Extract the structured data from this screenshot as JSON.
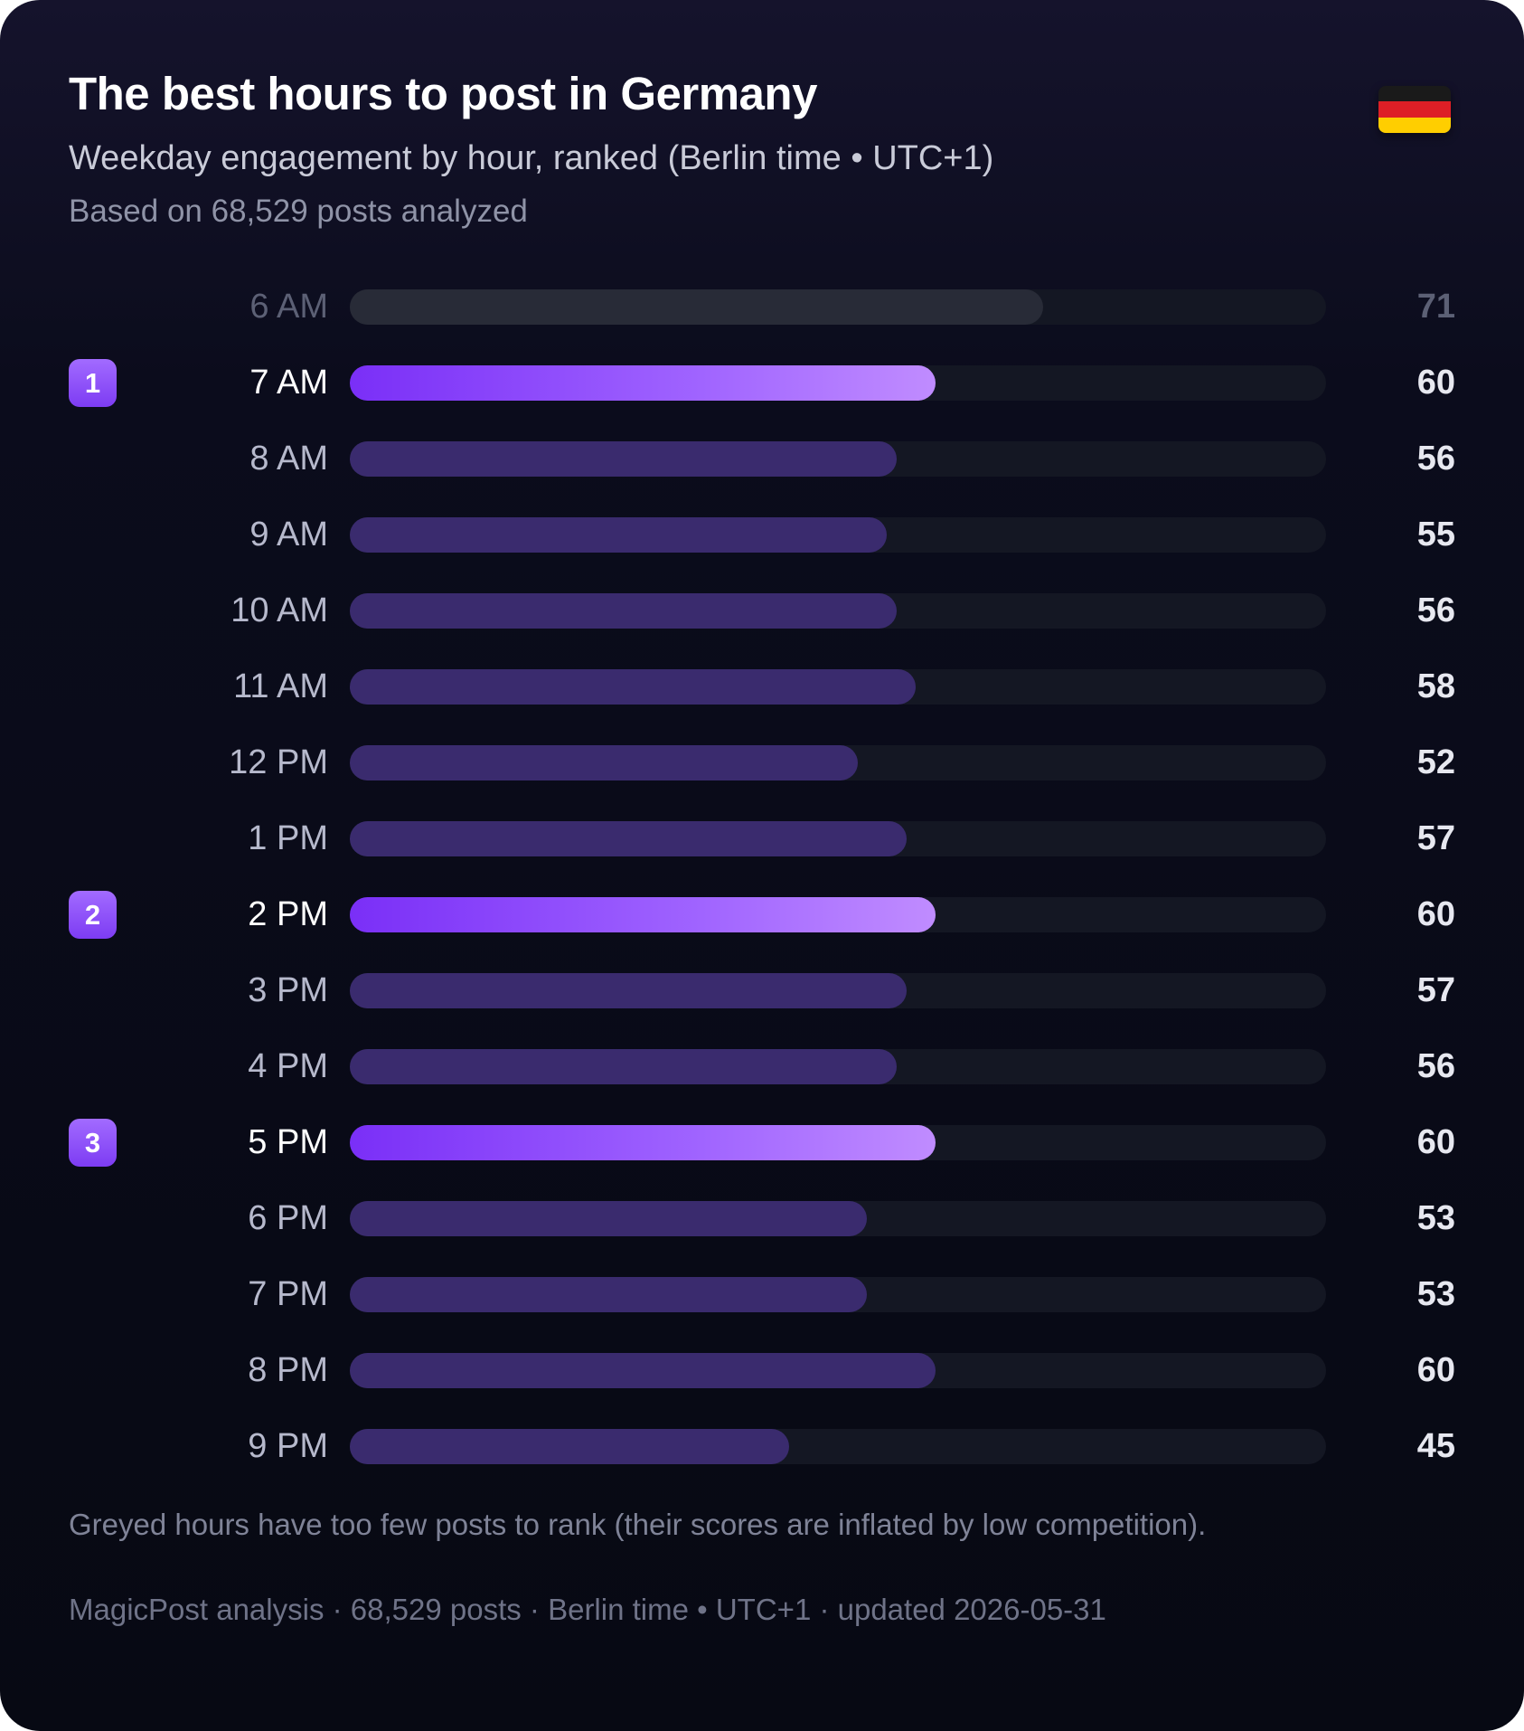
{
  "header": {
    "title": "The best hours to post in Germany",
    "subtitle": "Weekday engagement by hour, ranked (Berlin time • UTC+1)",
    "meta": "Based on 68,529 posts analyzed",
    "flag_icon": "germany-flag-icon"
  },
  "colors": {
    "background": "#0b0c1c",
    "top_bar": "#8b4dfb",
    "normal_bar": "#3a2b6e",
    "greyed_bar": "#282b37",
    "track": "#141723"
  },
  "chart_data": {
    "type": "bar",
    "orientation": "horizontal",
    "xlim": [
      0,
      100
    ],
    "categories": [
      "6 AM",
      "7 AM",
      "8 AM",
      "9 AM",
      "10 AM",
      "11 AM",
      "12 PM",
      "1 PM",
      "2 PM",
      "3 PM",
      "4 PM",
      "5 PM",
      "6 PM",
      "7 PM",
      "8 PM",
      "9 PM"
    ],
    "values": [
      71,
      60,
      56,
      55,
      56,
      58,
      52,
      57,
      60,
      57,
      56,
      60,
      53,
      53,
      60,
      45
    ],
    "ranks": [
      null,
      1,
      null,
      null,
      null,
      null,
      null,
      null,
      2,
      null,
      null,
      3,
      null,
      null,
      null,
      null
    ],
    "greyed": [
      true,
      false,
      false,
      false,
      false,
      false,
      false,
      false,
      false,
      false,
      false,
      false,
      false,
      false,
      false,
      false
    ]
  },
  "note": "Greyed hours have too few posts to rank (their scores are inflated by low competition).",
  "footer": "MagicPost analysis · 68,529 posts · Berlin time • UTC+1 · updated 2026-05-31"
}
